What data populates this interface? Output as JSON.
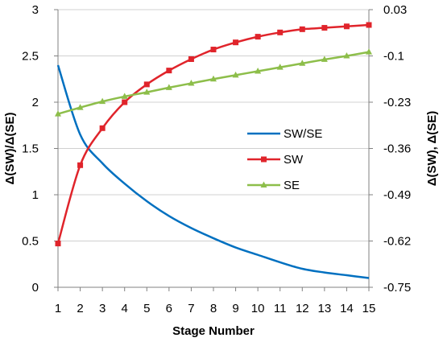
{
  "chart_data": {
    "type": "line",
    "title": "",
    "xlabel": "Stage Number",
    "ylabel_left": "Δ(SW)/Δ(SE)",
    "ylabel_right": "Δ(SW), Δ(SE)",
    "x": [
      1,
      2,
      3,
      4,
      5,
      6,
      7,
      8,
      9,
      10,
      11,
      12,
      13,
      14,
      15
    ],
    "x_ticks": [
      "1",
      "2",
      "3",
      "4",
      "5",
      "6",
      "7",
      "8",
      "9",
      "10",
      "11",
      "12",
      "13",
      "14",
      "15"
    ],
    "xlim": [
      1,
      15
    ],
    "ylim_left": [
      0,
      3
    ],
    "ylim_right": [
      -0.75,
      0.03
    ],
    "yticks_left": [
      "0",
      "0.5",
      "1",
      "1.5",
      "2",
      "2.5",
      "3"
    ],
    "yticks_right": [
      "-0.75",
      "-0.62",
      "-0.49",
      "-0.36",
      "-0.23",
      "-0.1",
      "0.03"
    ],
    "grid": "horizontal",
    "legend_position": "center-right",
    "series": [
      {
        "name": "SW/SE",
        "axis": "left",
        "marker": "none",
        "color": "#0070C0",
        "values": [
          2.4,
          1.65,
          1.34,
          1.12,
          0.93,
          0.77,
          0.64,
          0.53,
          0.43,
          0.35,
          0.27,
          0.2,
          0.16,
          0.13,
          0.1
        ]
      },
      {
        "name": "SW",
        "axis": "right",
        "marker": "square",
        "color": "#E0242B",
        "values": [
          -0.627,
          -0.407,
          -0.303,
          -0.23,
          -0.18,
          -0.141,
          -0.109,
          -0.082,
          -0.062,
          -0.046,
          -0.034,
          -0.025,
          -0.021,
          -0.017,
          -0.013
        ]
      },
      {
        "name": "SE",
        "axis": "right",
        "marker": "triangle",
        "color": "#8DBE4A",
        "values": [
          -0.263,
          -0.245,
          -0.228,
          -0.214,
          -0.202,
          -0.189,
          -0.177,
          -0.165,
          -0.154,
          -0.143,
          -0.132,
          -0.121,
          -0.11,
          -0.1,
          -0.089
        ]
      }
    ]
  }
}
